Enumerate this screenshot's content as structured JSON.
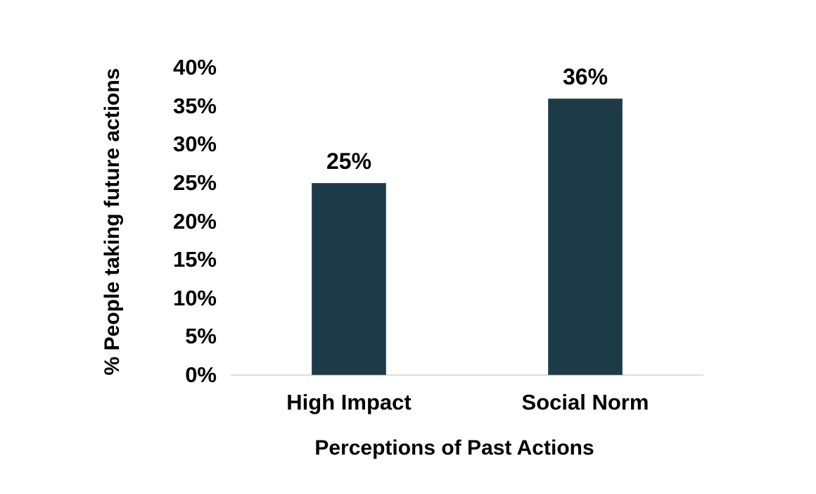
{
  "chart_data": {
    "type": "bar",
    "title": "",
    "categories": [
      "High Impact",
      "Social Norm"
    ],
    "values": [
      25,
      36
    ],
    "data_labels": [
      "25%",
      "36%"
    ],
    "xlabel": "Perceptions of Past Actions",
    "ylabel": "% People taking future actions",
    "ylim": [
      0,
      40
    ],
    "ytick_step": 5,
    "yticks": [
      "0%",
      "5%",
      "10%",
      "15%",
      "20%",
      "25%",
      "30%",
      "35%",
      "40%"
    ],
    "grid": false,
    "legend": "none",
    "colors": {
      "bar_fill": "#1d3b47",
      "bar_edge": "#46606a",
      "axis_line": "#dcdcdc",
      "text": "#000000",
      "background": "#ffffff"
    }
  }
}
